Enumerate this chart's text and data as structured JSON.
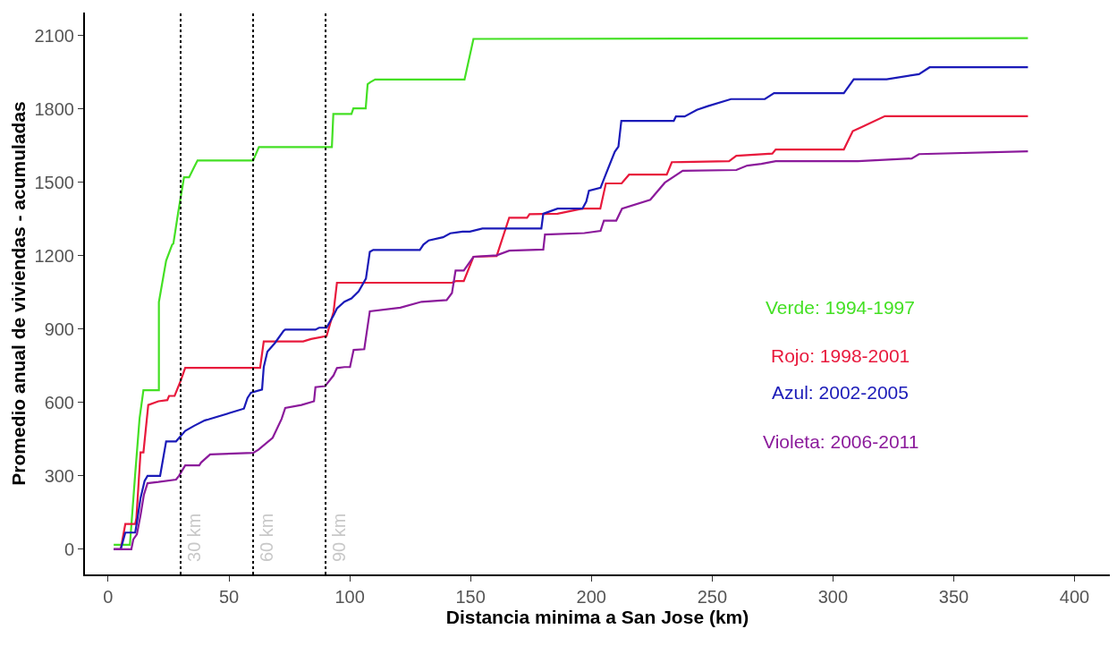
{
  "chart_data": {
    "type": "line",
    "xlabel": "Distancia minima a San Jose (km)",
    "ylabel": "Promedio anual de viviendas - acumuladas",
    "xlim": [
      -9.6,
      414.6
    ],
    "xticks": [
      0,
      50,
      100,
      150,
      200,
      250,
      300,
      350,
      400
    ],
    "ylim": [
      -103,
      2195
    ],
    "yticks": [
      0,
      300,
      600,
      900,
      1200,
      1500,
      1800,
      2100
    ],
    "legend": false,
    "marker": "none",
    "line_style": "solid",
    "series": [
      {
        "name": "Verde: 1994-1997",
        "color": "#44e024",
        "x": [
          2.3,
          9.0,
          11.2,
          13.0,
          14.6,
          21.0,
          21.0,
          24.0,
          26.5,
          27.0,
          29.0,
          31.4,
          33.5,
          35.5,
          37.0,
          60.0,
          62.4,
          92.6,
          93.2,
          100.7,
          101.5,
          106.6,
          107.4,
          108.5,
          110.5,
          147.5,
          151.2,
          380.7
        ],
        "values": [
          18,
          18,
          308,
          535,
          650,
          650,
          1011,
          1180,
          1246,
          1250,
          1378,
          1521,
          1521,
          1561,
          1590,
          1590,
          1645,
          1645,
          1780,
          1780,
          1803,
          1803,
          1902,
          1910,
          1921,
          1921,
          2087,
          2090
        ]
      },
      {
        "name": "Rojo: 1998-2001",
        "color": "#e8193c",
        "x": [
          2.3,
          5.2,
          7.1,
          11.2,
          11.7,
          13.4,
          14.6,
          16.6,
          20.8,
          24.5,
          25.2,
          27.5,
          30.0,
          31.9,
          62.9,
          64.4,
          80.7,
          84.0,
          90.4,
          93.3,
          94.7,
          142.3,
          144.0,
          147.2,
          151.2,
          160.8,
          166.0,
          173.4,
          174.4,
          186.0,
          196.3,
          203.7,
          206.0,
          212.5,
          215.6,
          231.2,
          233.3,
          257.0,
          260.0,
          274.9,
          276.3,
          304.5,
          308.2,
          311.5,
          321.5,
          380.7
        ],
        "values": [
          0,
          0,
          103,
          103,
          128,
          396,
          396,
          590,
          605,
          610,
          627,
          627,
          689,
          742,
          742,
          850,
          850,
          860,
          872,
          971,
          1090,
          1090,
          1097,
          1097,
          1196,
          1199,
          1356,
          1356,
          1370,
          1372,
          1393,
          1393,
          1496,
          1496,
          1532,
          1532,
          1583,
          1587,
          1609,
          1618,
          1635,
          1635,
          1710,
          1725,
          1771,
          1771
        ]
      },
      {
        "name": "Azul: 2002-2005",
        "color": "#1a1ab8",
        "x": [
          2.3,
          5.2,
          7.1,
          11.2,
          11.9,
          13.4,
          15.1,
          16.3,
          21.5,
          24.0,
          28.1,
          31.9,
          35.6,
          40.0,
          41.5,
          56.2,
          57.7,
          59.1,
          63.7,
          64.4,
          65.9,
          69.0,
          72.6,
          73.3,
          85.8,
          87.3,
          90.4,
          93.3,
          94.7,
          97.8,
          100.7,
          103.7,
          106.7,
          108.3,
          109.7,
          129.0,
          130.5,
          132.7,
          138.6,
          141.6,
          146.7,
          149.7,
          154.9,
          179.3,
          180.1,
          186.0,
          196.3,
          197.9,
          199.0,
          203.8,
          206.0,
          209.7,
          211.2,
          212.4,
          234.1,
          235.0,
          238.6,
          243.7,
          248.2,
          257.8,
          271.8,
          275.6,
          304.5,
          308.6,
          322.2,
          335.6,
          340.0,
          380.7
        ],
        "values": [
          0,
          0,
          68,
          68,
          110,
          209,
          280,
          300,
          300,
          441,
          441,
          484,
          505,
          527,
          531,
          575,
          619,
          640,
          653,
          745,
          808,
          843,
          893,
          898,
          898,
          906,
          906,
          956,
          985,
          1012,
          1026,
          1055,
          1107,
          1216,
          1224,
          1224,
          1246,
          1263,
          1276,
          1292,
          1299,
          1299,
          1312,
          1312,
          1372,
          1393,
          1393,
          1422,
          1466,
          1478,
          1534,
          1626,
          1647,
          1752,
          1752,
          1770,
          1770,
          1797,
          1812,
          1841,
          1841,
          1865,
          1865,
          1922,
          1922,
          1943,
          1971,
          1971
        ]
      },
      {
        "name": "Violeta: 2006-2011",
        "color": "#8b1a9b",
        "x": [
          2.3,
          9.6,
          10.4,
          11.9,
          13.4,
          14.8,
          16.3,
          20.8,
          28.1,
          29.3,
          31.9,
          37.7,
          38.5,
          42.2,
          60.0,
          62.2,
          68.1,
          71.8,
          73.3,
          80.0,
          85.2,
          85.8,
          89.8,
          93.3,
          94.7,
          97.8,
          100.1,
          101.6,
          106.0,
          108.3,
          120.9,
          129.7,
          140.1,
          142.3,
          143.8,
          147.2,
          151.2,
          160.8,
          166.0,
          180.1,
          180.8,
          197.1,
          203.8,
          205.2,
          210.3,
          212.7,
          224.4,
          230.4,
          237.8,
          260.0,
          264.5,
          270.4,
          276.3,
          310.3,
          332.6,
          335.6,
          380.7
        ],
        "values": [
          0,
          0,
          40,
          61,
          139,
          223,
          270,
          275,
          285,
          300,
          343,
          343,
          355,
          388,
          394,
          407,
          456,
          533,
          578,
          590,
          605,
          663,
          667,
          711,
          741,
          745,
          745,
          815,
          818,
          973,
          988,
          1012,
          1019,
          1048,
          1140,
          1140,
          1196,
          1202,
          1221,
          1226,
          1287,
          1293,
          1302,
          1344,
          1344,
          1393,
          1429,
          1499,
          1548,
          1551,
          1569,
          1576,
          1587,
          1587,
          1598,
          1616,
          1627
        ]
      }
    ],
    "ref_lines": [
      {
        "axis": "x",
        "value": 30,
        "label": "30 km",
        "color": "#000000",
        "line_style": "dotted"
      },
      {
        "axis": "x",
        "value": 60,
        "label": "60 km",
        "color": "#000000",
        "line_style": "dotted"
      },
      {
        "axis": "x",
        "value": 90,
        "label": "90 km",
        "color": "#000000",
        "line_style": "dotted"
      }
    ]
  }
}
